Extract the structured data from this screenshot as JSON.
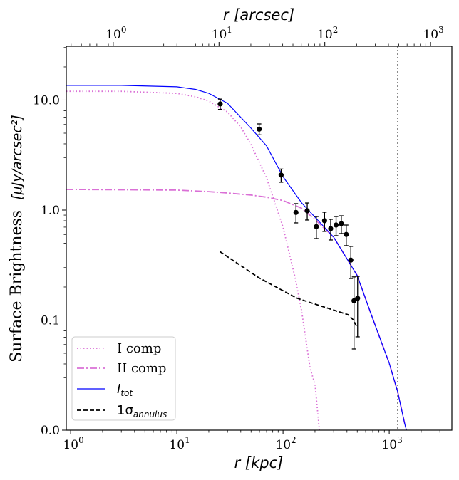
{
  "chart_data": {
    "type": "line",
    "xlabel": "r   [kpc]",
    "xlabel_top": "r   [arcsec]",
    "ylabel": "Surface Brightness",
    "ylabel_unit": "[μJy/arcsec²]",
    "xscale": "log",
    "yscale": "log",
    "xlim": [
      0.91,
      3890
    ],
    "xlim_top": [
      0.36,
      1590
    ],
    "ylim": [
      0.01,
      30.8
    ],
    "grid": false,
    "legend_position": "lower-left",
    "x_ticks": [
      {
        "value": 1,
        "base": "10",
        "exp": "0"
      },
      {
        "value": 10,
        "base": "10",
        "exp": "1"
      },
      {
        "value": 100,
        "base": "10",
        "exp": "2"
      },
      {
        "value": 1000,
        "base": "10",
        "exp": "3"
      }
    ],
    "x_top_ticks": [
      {
        "value": 1,
        "base": "10",
        "exp": "0"
      },
      {
        "value": 10,
        "base": "10",
        "exp": "1"
      },
      {
        "value": 100,
        "base": "10",
        "exp": "2"
      },
      {
        "value": 1000,
        "base": "10",
        "exp": "3"
      }
    ],
    "y_ticks": [
      {
        "value": 10,
        "label": "10.0"
      },
      {
        "value": 1,
        "label": "1.0"
      },
      {
        "value": 0.1,
        "label": "0.1"
      },
      {
        "value": 0.01,
        "label": "0.0"
      }
    ],
    "vline": {
      "x": 1200,
      "color": "#808080",
      "style": "dotted"
    },
    "series": [
      {
        "name": "I comp",
        "color": "#da70d6",
        "style": "dotted",
        "x": [
          0.91,
          3,
          10,
          15,
          20,
          30,
          40,
          50,
          70,
          100,
          130,
          150,
          180,
          200,
          220
        ],
        "y": [
          12.0,
          12.0,
          11.5,
          10.7,
          9.78,
          7.8,
          5.7,
          3.94,
          1.96,
          0.7,
          0.243,
          0.12,
          0.0365,
          0.026,
          0.01
        ]
      },
      {
        "name": "II comp",
        "color": "#da70d6",
        "style": "dashdot",
        "x": [
          0.91,
          10,
          20,
          30,
          50,
          70,
          100,
          150,
          200,
          300,
          500,
          700,
          1000,
          1200,
          1400,
          1460
        ],
        "y": [
          1.54,
          1.52,
          1.47,
          1.43,
          1.37,
          1.31,
          1.22,
          1.04,
          0.82,
          0.567,
          0.254,
          0.103,
          0.0406,
          0.0224,
          0.0114,
          0.0098
        ]
      },
      {
        "name": "I",
        "name_sub": "tot",
        "color": "#0000ff",
        "style": "solid",
        "x": [
          0.91,
          3,
          10,
          15,
          20,
          30,
          50,
          70,
          100,
          150,
          200,
          300,
          500,
          700,
          1000,
          1200,
          1400,
          1460
        ],
        "y": [
          13.6,
          13.6,
          13.2,
          12.5,
          11.5,
          9.35,
          5.55,
          3.83,
          2.01,
          1.16,
          0.862,
          0.567,
          0.254,
          0.103,
          0.0406,
          0.0224,
          0.0114,
          0.0098
        ]
      },
      {
        "name": "1σ",
        "name_sub": "annulus",
        "color": "#000000",
        "style": "dashed",
        "x": [
          25.4,
          59,
          134,
          163,
          410,
          457,
          493
        ],
        "y": [
          0.42,
          0.243,
          0.159,
          0.149,
          0.112,
          0.101,
          0.088
        ]
      }
    ],
    "points": {
      "color": "#000000",
      "x": [
        25.6,
        59.6,
        95.9,
        132.4,
        169,
        206,
        246,
        281,
        316,
        354,
        394,
        435,
        466,
        504
      ],
      "y": [
        9.21,
        5.44,
        2.08,
        0.952,
        0.985,
        0.707,
        0.8,
        0.678,
        0.731,
        0.753,
        0.6,
        0.351,
        0.15,
        0.158
      ],
      "y_low": [
        8.22,
        4.83,
        1.79,
        0.765,
        0.812,
        0.551,
        0.64,
        0.535,
        0.585,
        0.612,
        0.475,
        0.239,
        0.0547,
        0.0705
      ],
      "y_high": [
        10.2,
        6.07,
        2.36,
        1.144,
        1.16,
        0.874,
        0.956,
        0.824,
        0.874,
        0.887,
        0.731,
        0.468,
        0.247,
        0.25
      ]
    }
  }
}
